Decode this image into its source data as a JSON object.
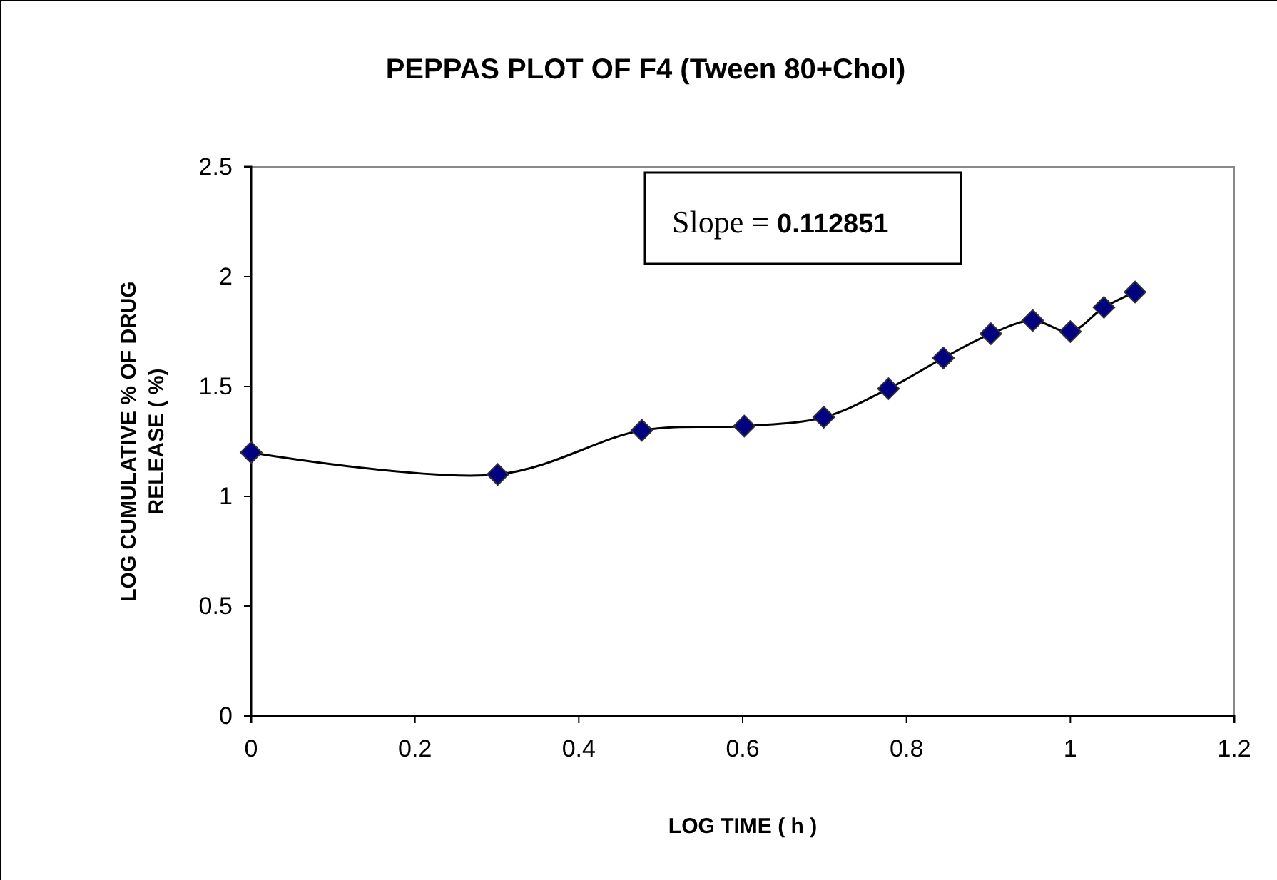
{
  "chart_data": {
    "type": "line",
    "title": "PEPPAS PLOT OF F4 (Tween 80+Chol)",
    "xlabel": "LOG TIME ( h )",
    "ylabel": "LOG CUMULATIVE % OF DRUG RELEASE ( %)",
    "x": [
      0,
      0.301,
      0.477,
      0.602,
      0.699,
      0.778,
      0.845,
      0.903,
      0.954,
      1.0,
      1.041,
      1.079
    ],
    "series": [
      {
        "color": "#000080",
        "values": [
          1.2,
          1.1,
          1.3,
          1.32,
          1.36,
          1.49,
          1.63,
          1.74,
          1.8,
          1.75,
          1.86,
          1.93
        ]
      }
    ],
    "marker": "diamond",
    "line_style": "solid",
    "xlim": [
      0,
      1.2
    ],
    "xticks": [
      0,
      0.2,
      0.4,
      0.6,
      0.8,
      1,
      1.2
    ],
    "ylim": [
      0,
      2.5
    ],
    "yticks": [
      0,
      0.5,
      1,
      1.5,
      2,
      2.5
    ],
    "annotations": [
      "Slope = 0.112851"
    ]
  }
}
